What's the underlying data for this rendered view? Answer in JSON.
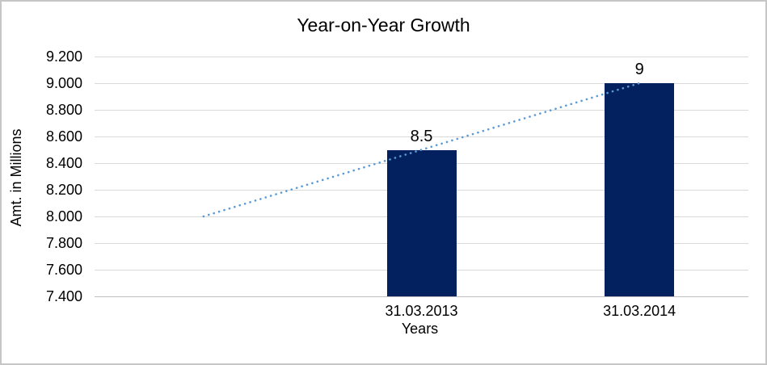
{
  "chart_data": {
    "type": "bar",
    "title": "Year-on-Year Growth",
    "xlabel": "Years",
    "ylabel": "Amt. in Millions",
    "categories": [
      "31.03.2013",
      "31.03.2014"
    ],
    "values": [
      8.5,
      9
    ],
    "data_labels": [
      "8.5",
      "9"
    ],
    "ylim": [
      7.4,
      9.2
    ],
    "ytick_interval": 0.2,
    "ytick_labels": [
      "9.200",
      "9.000",
      "8.800",
      "8.600",
      "8.400",
      "8.200",
      "8.000",
      "7.800",
      "7.600",
      "7.400"
    ],
    "trendline": {
      "style": "dotted",
      "start_value": 8.0,
      "end_value": 9.0
    },
    "grid": true,
    "legend_position": "none",
    "colors": {
      "bar": "#02215e",
      "trendline": "#5b9bd5",
      "gridline": "#d9d9d9",
      "axis_line": "#bfbfbf",
      "text": "#000000",
      "border": "#c6c6c6"
    }
  }
}
